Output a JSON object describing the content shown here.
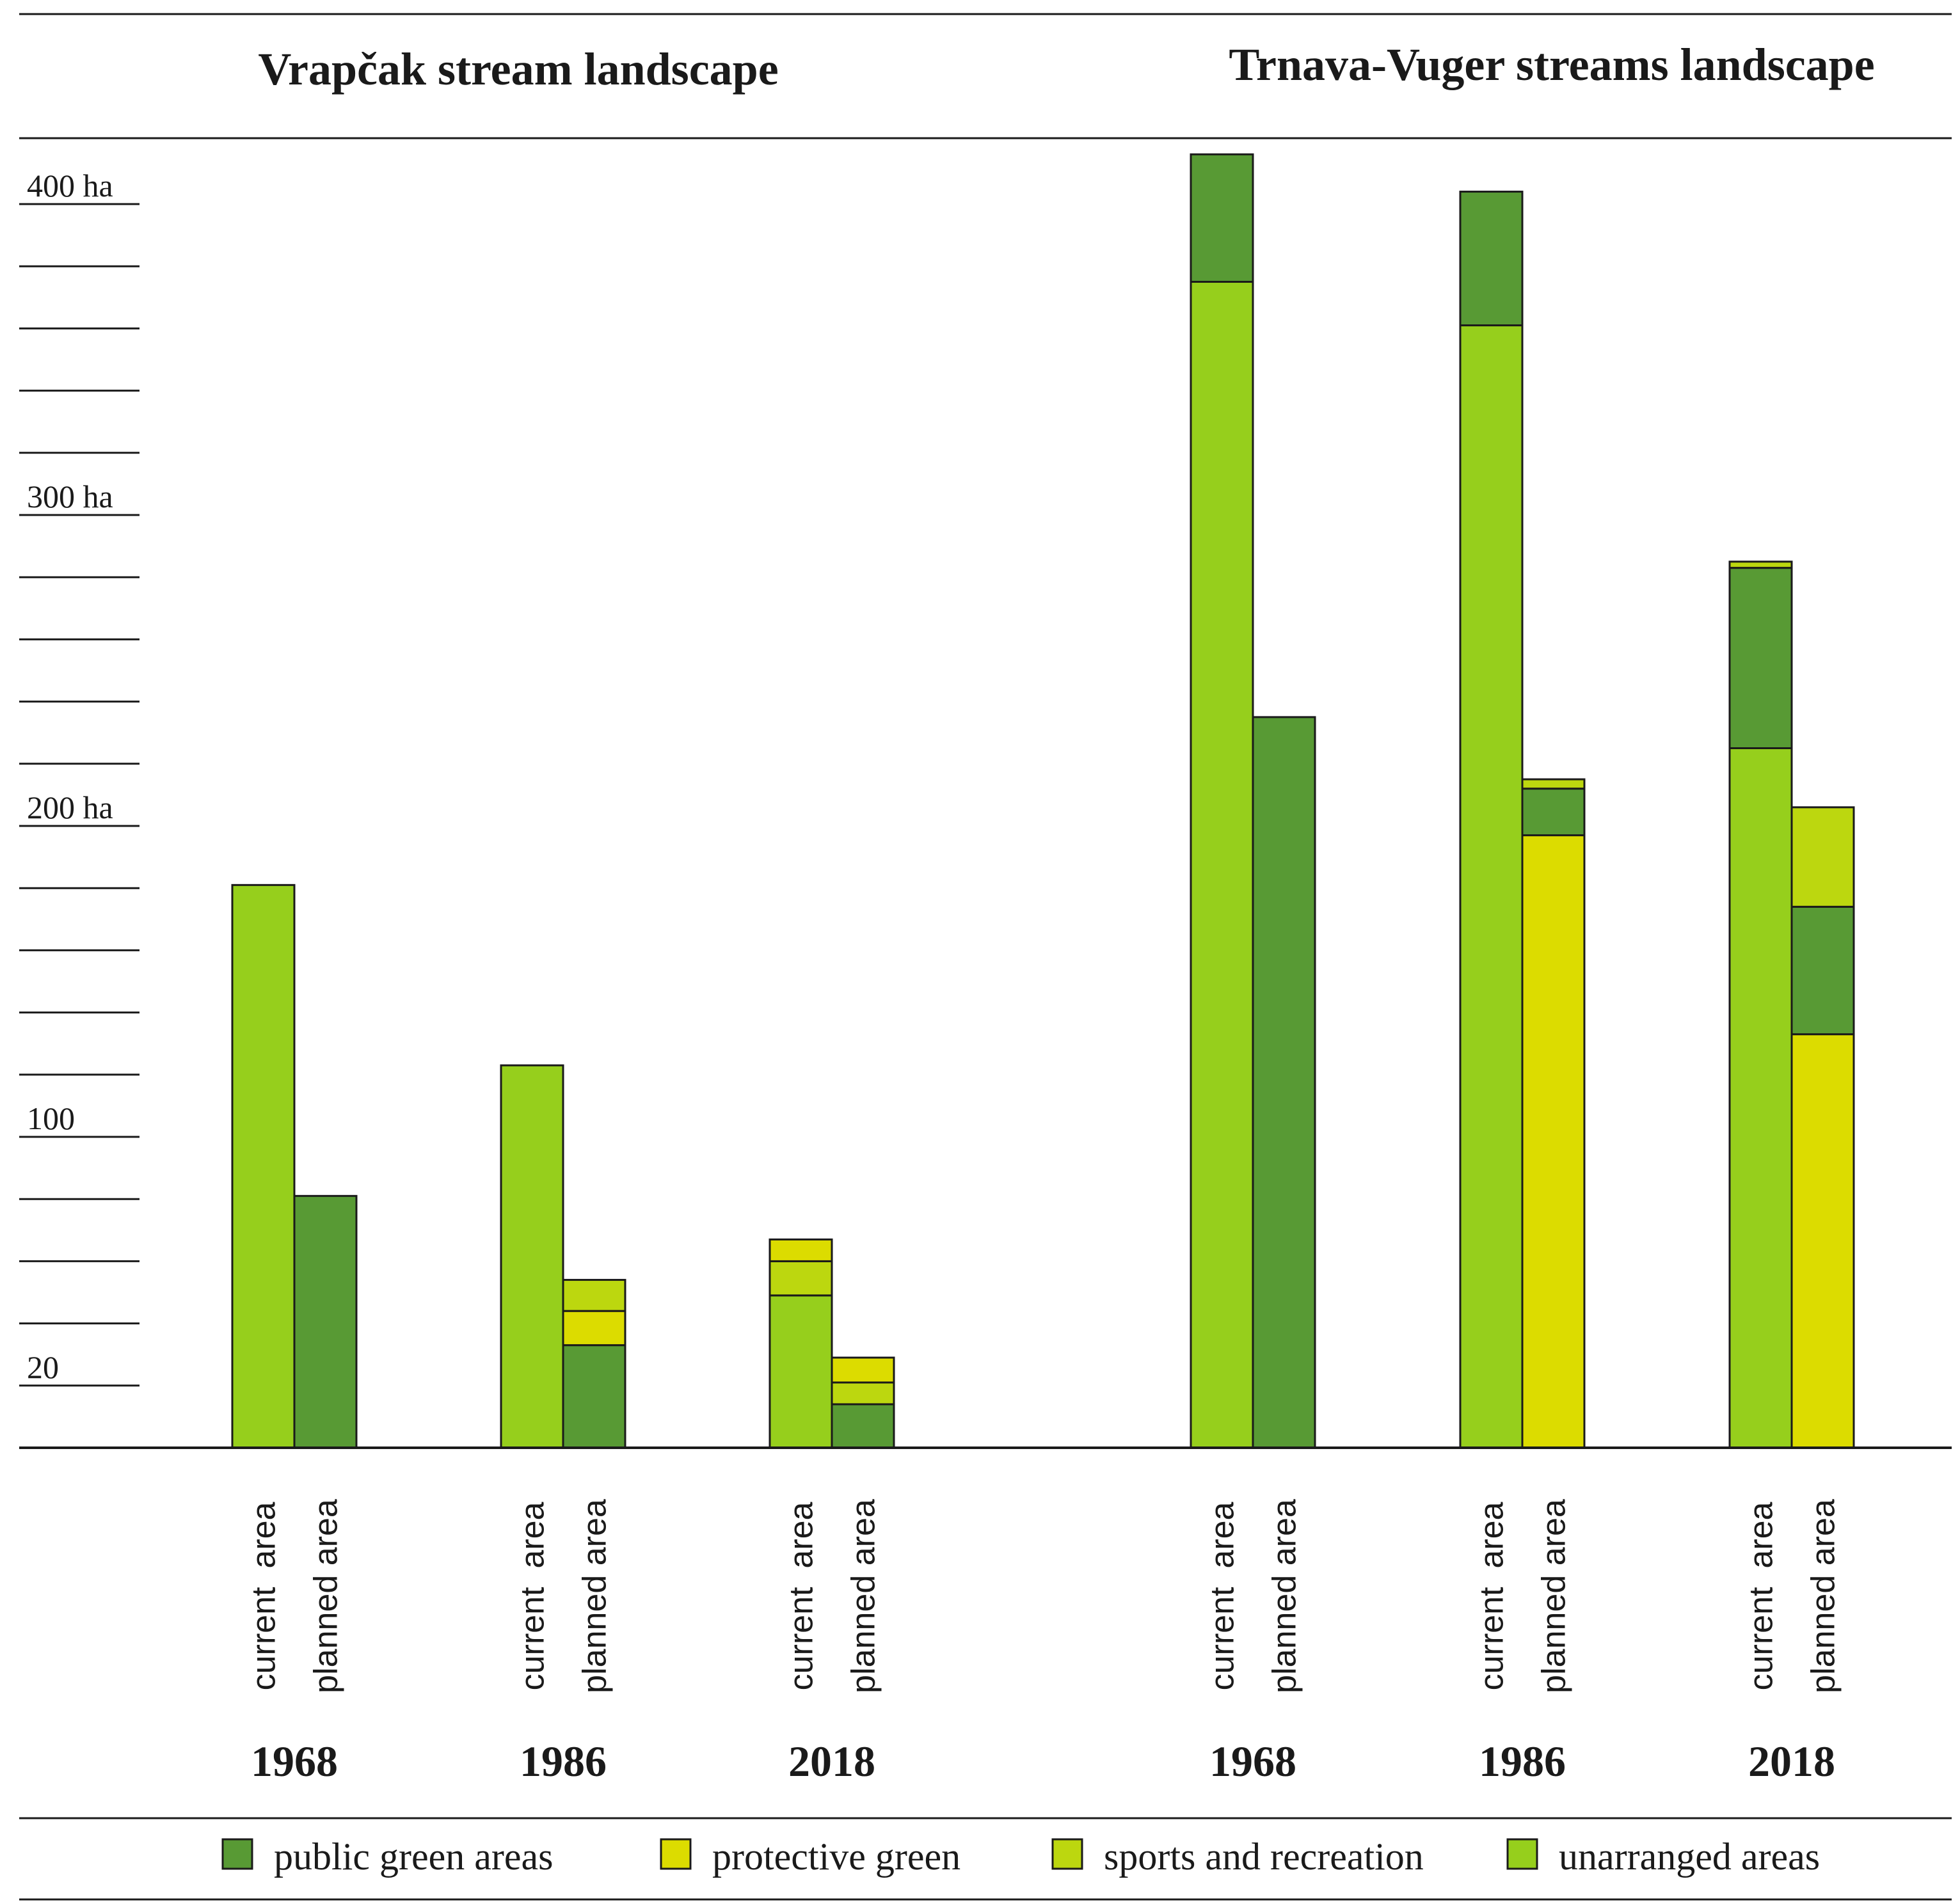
{
  "chart_data": {
    "type": "bar",
    "stacked": true,
    "unit": "ha",
    "ylim": [
      0,
      420
    ],
    "tick_step": 20,
    "tick_labels": [
      {
        "value": 20,
        "label": "20"
      },
      {
        "value": 100,
        "label": "100"
      },
      {
        "value": 200,
        "label": "200 ha"
      },
      {
        "value": 300,
        "label": "300 ha"
      },
      {
        "value": 400,
        "label": "400 ha"
      }
    ],
    "categories": [
      "public green areas",
      "protective green",
      "sports and recreation",
      "unarranged areas"
    ],
    "colors": {
      "public green areas": "#589a34",
      "protective green": "#dcdc00",
      "sports and recreation": "#bcd70f",
      "unarranged areas": "#96cf1c"
    },
    "bar_labels": {
      "current": "current  area",
      "planned": "planned area"
    },
    "panels": [
      {
        "title": "Vrapčak stream landscape",
        "groups": [
          {
            "year": "1968",
            "current": [
              {
                "category": "unarranged areas",
                "value": 181
              }
            ],
            "planned": [
              {
                "category": "public green areas",
                "value": 81
              }
            ]
          },
          {
            "year": "1986",
            "current": [
              {
                "category": "unarranged areas",
                "value": 123
              }
            ],
            "planned": [
              {
                "category": "public green areas",
                "value": 33
              },
              {
                "category": "protective green",
                "value": 11
              },
              {
                "category": "sports and recreation",
                "value": 10
              }
            ]
          },
          {
            "year": "2018",
            "current": [
              {
                "category": "unarranged areas",
                "value": 49
              },
              {
                "category": "sports and recreation",
                "value": 11
              },
              {
                "category": "protective green",
                "value": 7
              }
            ],
            "planned": [
              {
                "category": "public green areas",
                "value": 14
              },
              {
                "category": "sports and recreation",
                "value": 7
              },
              {
                "category": "protective green",
                "value": 8
              }
            ]
          }
        ]
      },
      {
        "title": "Trnava-Vuger streams landscape",
        "groups": [
          {
            "year": "1968",
            "current": [
              {
                "category": "unarranged areas",
                "value": 375
              },
              {
                "category": "public green areas",
                "value": 41
              }
            ],
            "planned": [
              {
                "category": "public green areas",
                "value": 235
              }
            ]
          },
          {
            "year": "1986",
            "current": [
              {
                "category": "unarranged areas",
                "value": 361
              },
              {
                "category": "public green areas",
                "value": 43
              }
            ],
            "planned": [
              {
                "category": "protective green",
                "value": 197
              },
              {
                "category": "public green areas",
                "value": 15
              },
              {
                "category": "sports and recreation",
                "value": 3
              }
            ]
          },
          {
            "year": "2018",
            "current": [
              {
                "category": "unarranged areas",
                "value": 225
              },
              {
                "category": "public green areas",
                "value": 58
              },
              {
                "category": "sports and recreation",
                "value": 2
              }
            ],
            "planned": [
              {
                "category": "protective green",
                "value": 133
              },
              {
                "category": "public green areas",
                "value": 41
              },
              {
                "category": "sports and recreation",
                "value": 32
              }
            ]
          }
        ]
      }
    ],
    "legend": [
      {
        "label": "public green areas",
        "category": "public green areas"
      },
      {
        "label": "protective green",
        "category": "protective green"
      },
      {
        "label": "sports and recreation",
        "category": "sports and recreation"
      },
      {
        "label": "unarranged areas",
        "category": "unarranged areas"
      }
    ]
  }
}
